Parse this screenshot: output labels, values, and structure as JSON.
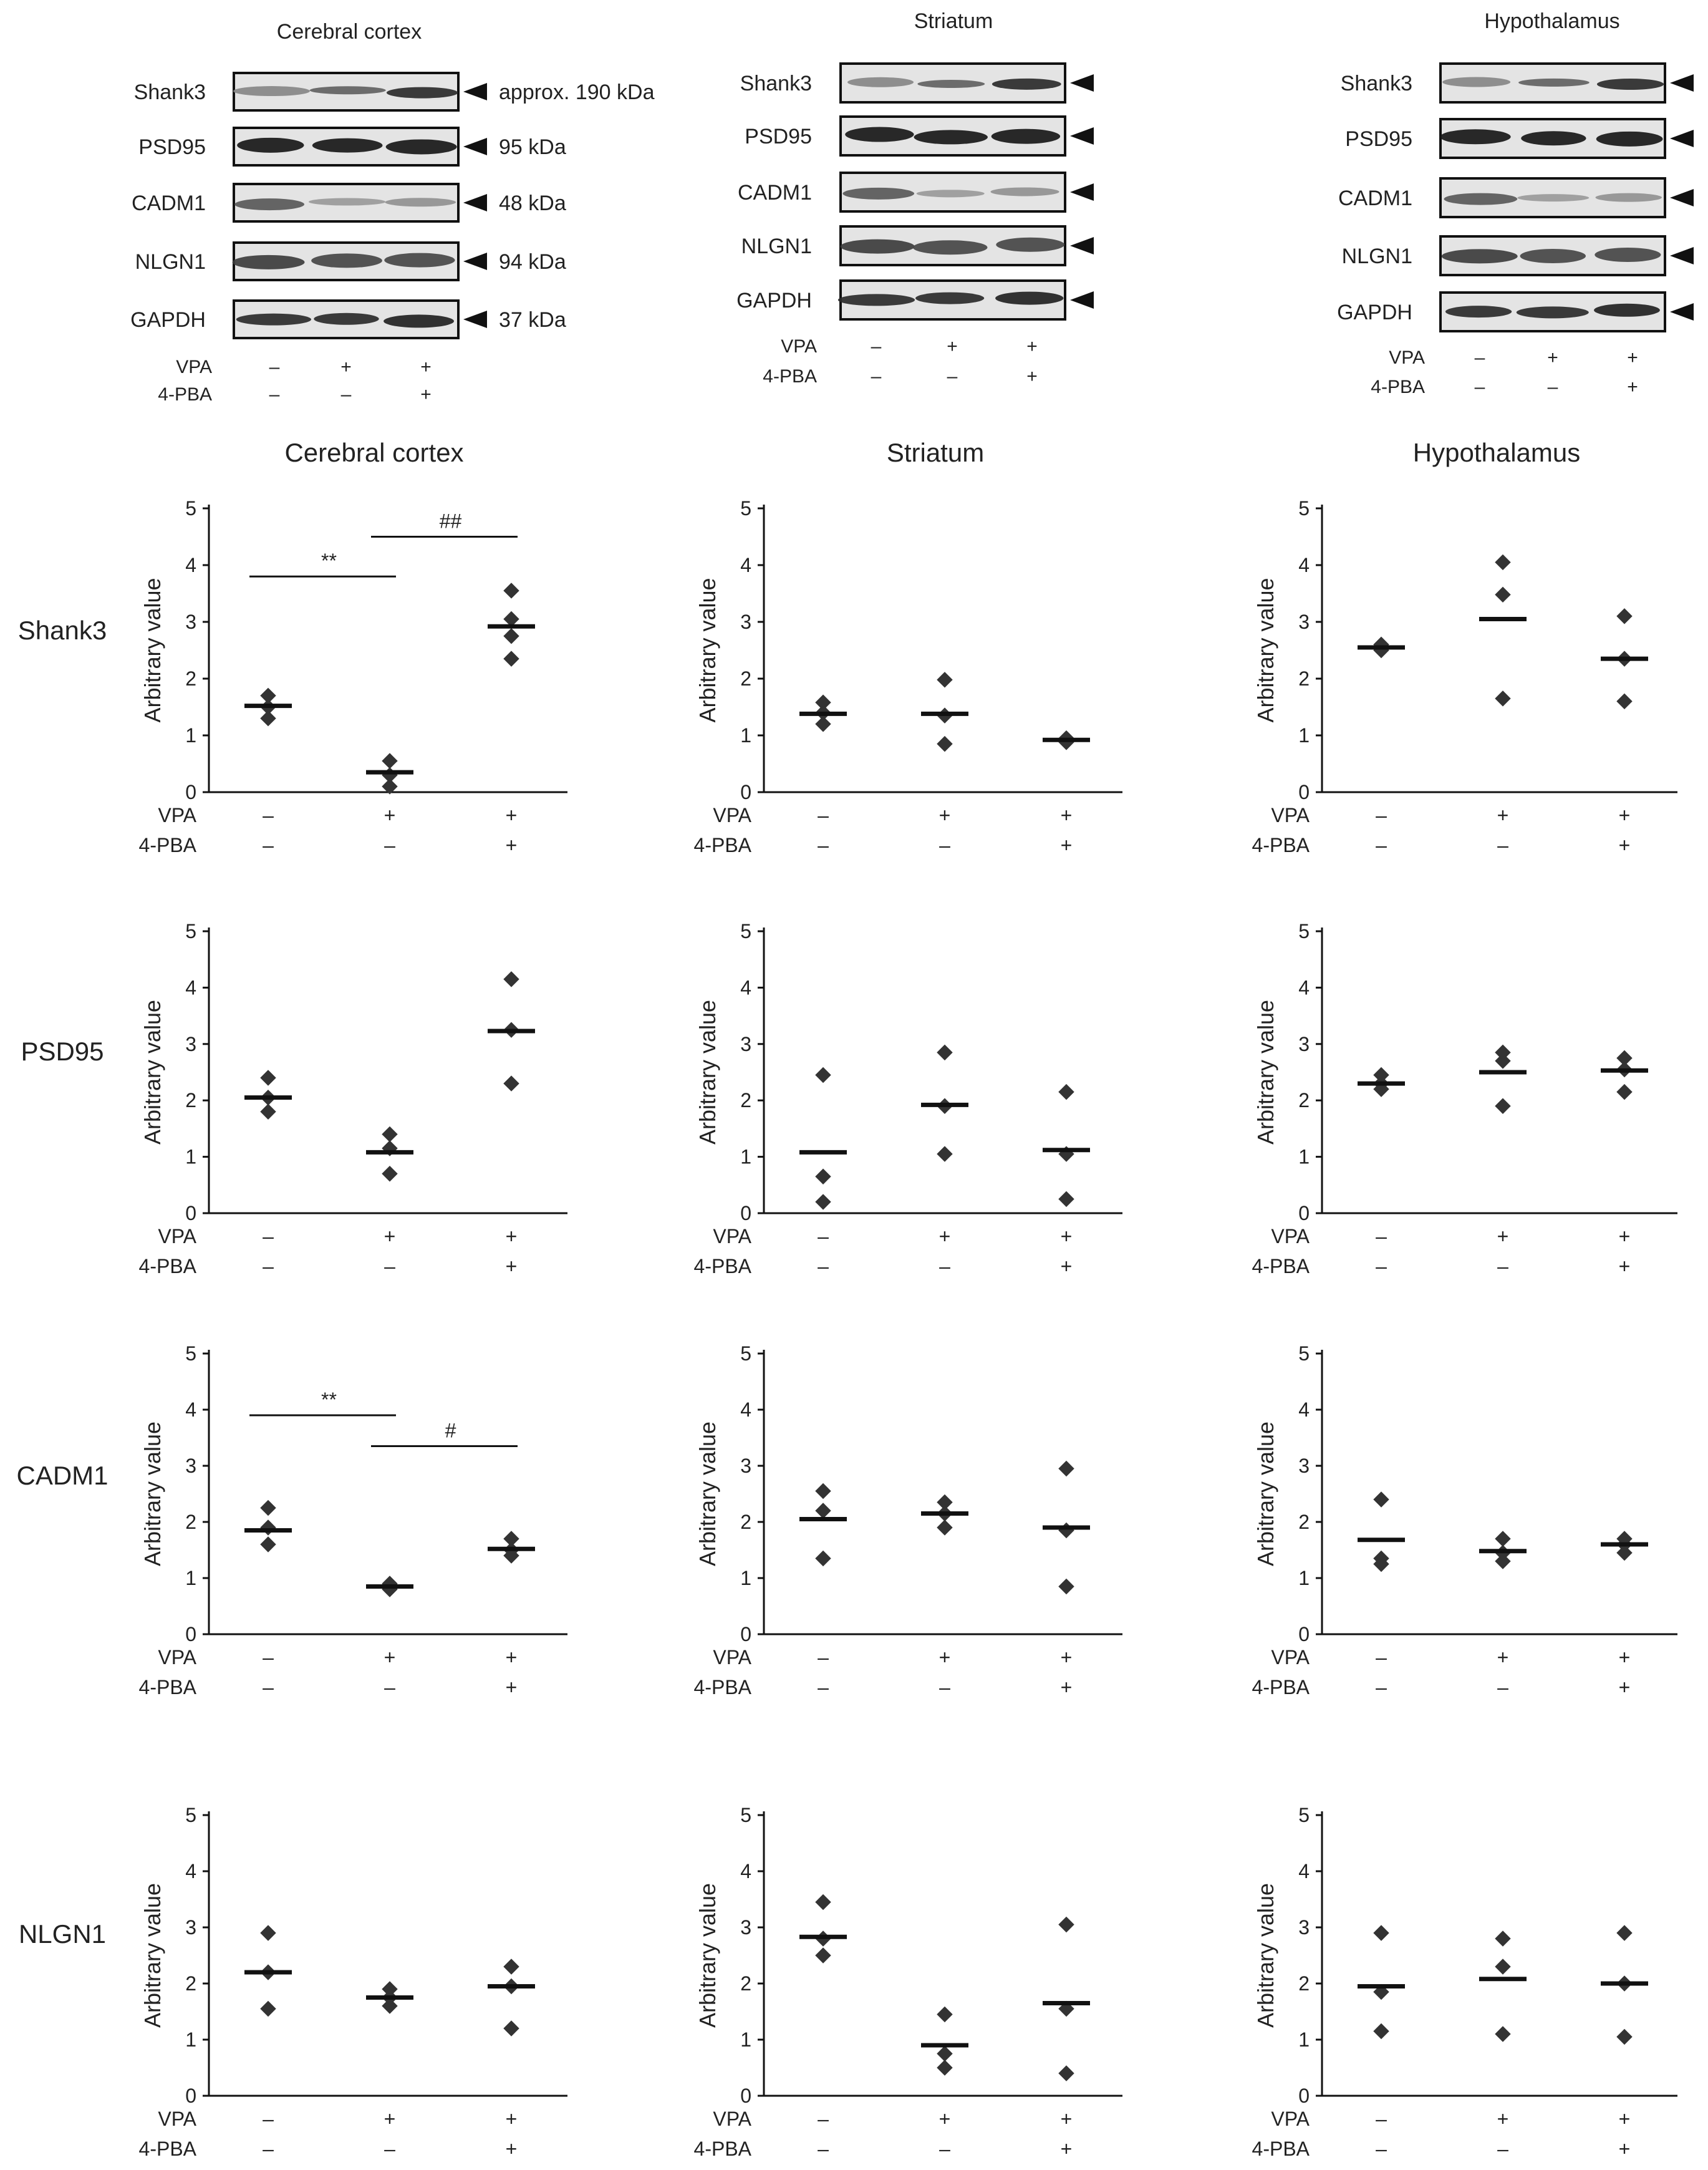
{
  "figure": {
    "blots": [
      {
        "title": "Cerebral cortex",
        "proteins": [
          "Shank3",
          "PSD95",
          "CADM1",
          "NLGN1",
          "GAPDH"
        ],
        "sizes": [
          "approx. 190 kDa",
          "95 kDa",
          "48 kDa",
          "94 kDa",
          "37 kDa"
        ],
        "vpa": [
          "–",
          "+",
          "+"
        ],
        "pba": [
          "–",
          "–",
          "+"
        ]
      },
      {
        "title": "Striatum",
        "proteins": [
          "Shank3",
          "PSD95",
          "CADM1",
          "NLGN1",
          "GAPDH"
        ],
        "sizes": [],
        "vpa": [
          "–",
          "+",
          "+"
        ],
        "pba": [
          "–",
          "–",
          "+"
        ]
      },
      {
        "title": "Hypothalamus",
        "proteins": [
          "Shank3",
          "PSD95",
          "CADM1",
          "NLGN1",
          "GAPDH"
        ],
        "sizes": [],
        "vpa": [
          "–",
          "+",
          "+"
        ],
        "pba": [
          "–",
          "–",
          "+"
        ]
      }
    ],
    "row_labels": [
      "Shank3",
      "PSD95",
      "CADM1",
      "NLGN1"
    ],
    "column_titles": [
      "Cerebral cortex",
      "Striatum",
      "Hypothalamus"
    ],
    "vpa_label": "VPA",
    "pba_label": "4-PBA"
  },
  "chart_data": [
    {
      "type": "scatter",
      "region": "Cerebral cortex",
      "protein": "Shank3",
      "ylabel": "Arbitrary value",
      "ylim": [
        0,
        5
      ],
      "yticks": [
        "0",
        "1",
        "2",
        "3",
        "4",
        "5"
      ],
      "xlabel_rows": [
        {
          "label": "VPA",
          "values": [
            "–",
            "+",
            "+"
          ]
        },
        {
          "label": "4-PBA",
          "values": [
            "–",
            "–",
            "+"
          ]
        }
      ],
      "groups": [
        {
          "points": [
            1.3,
            1.5,
            1.7
          ],
          "mean": 1.52
        },
        {
          "points": [
            0.1,
            0.3,
            0.55
          ],
          "mean": 0.35
        },
        {
          "points": [
            2.35,
            2.75,
            3.05,
            3.55
          ],
          "mean": 2.92
        }
      ],
      "annotations": [
        {
          "from": 0,
          "to": 1,
          "level": 3.8,
          "text": "**"
        },
        {
          "from": 1,
          "to": 2,
          "level": 4.5,
          "text": "##"
        }
      ]
    },
    {
      "type": "scatter",
      "region": "Striatum",
      "protein": "Shank3",
      "ylabel": "Arbitrary value",
      "ylim": [
        0,
        5
      ],
      "yticks": [
        "0",
        "1",
        "2",
        "3",
        "4",
        "5"
      ],
      "xlabel_rows": [
        {
          "label": "VPA",
          "values": [
            "–",
            "+",
            "+"
          ]
        },
        {
          "label": "4-PBA",
          "values": [
            "–",
            "–",
            "+"
          ]
        }
      ],
      "groups": [
        {
          "points": [
            1.2,
            1.4,
            1.58
          ],
          "mean": 1.38
        },
        {
          "points": [
            0.85,
            1.35,
            1.98
          ],
          "mean": 1.38
        },
        {
          "points": [
            0.88,
            0.92,
            0.95
          ],
          "mean": 0.92
        }
      ],
      "annotations": []
    },
    {
      "type": "scatter",
      "region": "Hypothalamus",
      "protein": "Shank3",
      "ylabel": "Arbitrary value",
      "ylim": [
        0,
        5
      ],
      "yticks": [
        "0",
        "1",
        "2",
        "3",
        "4",
        "5"
      ],
      "xlabel_rows": [
        {
          "label": "VPA",
          "values": [
            "–",
            "+",
            "+"
          ]
        },
        {
          "label": "4-PBA",
          "values": [
            "–",
            "–",
            "+"
          ]
        }
      ],
      "groups": [
        {
          "points": [
            2.5,
            2.55,
            2.6
          ],
          "mean": 2.55
        },
        {
          "points": [
            1.65,
            3.48,
            4.05
          ],
          "mean": 3.05
        },
        {
          "points": [
            1.6,
            2.35,
            3.1
          ],
          "mean": 2.35
        }
      ],
      "annotations": []
    },
    {
      "type": "scatter",
      "region": "Cerebral cortex",
      "protein": "PSD95",
      "ylabel": "Arbitrary value",
      "ylim": [
        0,
        5
      ],
      "yticks": [
        "0",
        "1",
        "2",
        "3",
        "4",
        "5"
      ],
      "xlabel_rows": [
        {
          "label": "VPA",
          "values": [
            "–",
            "+",
            "+"
          ]
        },
        {
          "label": "4-PBA",
          "values": [
            "–",
            "–",
            "+"
          ]
        }
      ],
      "groups": [
        {
          "points": [
            1.8,
            2.05,
            2.4
          ],
          "mean": 2.05
        },
        {
          "points": [
            0.7,
            1.15,
            1.4
          ],
          "mean": 1.08
        },
        {
          "points": [
            2.3,
            3.25,
            4.15
          ],
          "mean": 3.23
        }
      ],
      "annotations": []
    },
    {
      "type": "scatter",
      "region": "Striatum",
      "protein": "PSD95",
      "ylabel": "Arbitrary value",
      "ylim": [
        0,
        5
      ],
      "yticks": [
        "0",
        "1",
        "2",
        "3",
        "4",
        "5"
      ],
      "xlabel_rows": [
        {
          "label": "VPA",
          "values": [
            "–",
            "+",
            "+"
          ]
        },
        {
          "label": "4-PBA",
          "values": [
            "–",
            "–",
            "+"
          ]
        }
      ],
      "groups": [
        {
          "points": [
            0.2,
            0.65,
            2.45
          ],
          "mean": 1.08
        },
        {
          "points": [
            1.05,
            1.9,
            2.85
          ],
          "mean": 1.92
        },
        {
          "points": [
            0.25,
            1.05,
            2.15
          ],
          "mean": 1.12
        }
      ],
      "annotations": []
    },
    {
      "type": "scatter",
      "region": "Hypothalamus",
      "protein": "PSD95",
      "ylabel": "Arbitrary value",
      "ylim": [
        0,
        5
      ],
      "yticks": [
        "0",
        "1",
        "2",
        "3",
        "4",
        "5"
      ],
      "xlabel_rows": [
        {
          "label": "VPA",
          "values": [
            "–",
            "+",
            "+"
          ]
        },
        {
          "label": "4-PBA",
          "values": [
            "–",
            "–",
            "+"
          ]
        }
      ],
      "groups": [
        {
          "points": [
            2.2,
            2.3,
            2.45
          ],
          "mean": 2.3
        },
        {
          "points": [
            1.9,
            2.7,
            2.85
          ],
          "mean": 2.5
        },
        {
          "points": [
            2.15,
            2.55,
            2.75
          ],
          "mean": 2.53
        }
      ],
      "annotations": []
    },
    {
      "type": "scatter",
      "region": "Cerebral cortex",
      "protein": "CADM1",
      "ylabel": "Arbitrary value",
      "ylim": [
        0,
        5
      ],
      "yticks": [
        "0",
        "1",
        "2",
        "3",
        "4",
        "5"
      ],
      "xlabel_rows": [
        {
          "label": "VPA",
          "values": [
            "–",
            "+",
            "+"
          ]
        },
        {
          "label": "4-PBA",
          "values": [
            "–",
            "–",
            "+"
          ]
        }
      ],
      "groups": [
        {
          "points": [
            1.6,
            1.9,
            2.25
          ],
          "mean": 1.85
        },
        {
          "points": [
            0.8,
            0.85,
            0.9
          ],
          "mean": 0.85
        },
        {
          "points": [
            1.4,
            1.5,
            1.7
          ],
          "mean": 1.52
        }
      ],
      "annotations": [
        {
          "from": 0,
          "to": 1,
          "level": 3.9,
          "text": "**"
        },
        {
          "from": 1,
          "to": 2,
          "level": 3.35,
          "text": "#"
        }
      ]
    },
    {
      "type": "scatter",
      "region": "Striatum",
      "protein": "CADM1",
      "ylabel": "Arbitrary value",
      "ylim": [
        0,
        5
      ],
      "yticks": [
        "0",
        "1",
        "2",
        "3",
        "4",
        "5"
      ],
      "xlabel_rows": [
        {
          "label": "VPA",
          "values": [
            "–",
            "+",
            "+"
          ]
        },
        {
          "label": "4-PBA",
          "values": [
            "–",
            "–",
            "+"
          ]
        }
      ],
      "groups": [
        {
          "points": [
            1.35,
            2.2,
            2.55
          ],
          "mean": 2.05
        },
        {
          "points": [
            1.9,
            2.15,
            2.35
          ],
          "mean": 2.15
        },
        {
          "points": [
            0.85,
            1.85,
            2.95
          ],
          "mean": 1.9
        }
      ],
      "annotations": []
    },
    {
      "type": "scatter",
      "region": "Hypothalamus",
      "protein": "CADM1",
      "ylabel": "Arbitrary value",
      "ylim": [
        0,
        5
      ],
      "yticks": [
        "0",
        "1",
        "2",
        "3",
        "4",
        "5"
      ],
      "xlabel_rows": [
        {
          "label": "VPA",
          "values": [
            "–",
            "+",
            "+"
          ]
        },
        {
          "label": "4-PBA",
          "values": [
            "–",
            "–",
            "+"
          ]
        }
      ],
      "groups": [
        {
          "points": [
            1.25,
            1.35,
            2.4
          ],
          "mean": 1.68
        },
        {
          "points": [
            1.3,
            1.45,
            1.7
          ],
          "mean": 1.48
        },
        {
          "points": [
            1.45,
            1.6,
            1.7
          ],
          "mean": 1.6
        }
      ],
      "annotations": []
    },
    {
      "type": "scatter",
      "region": "Cerebral cortex",
      "protein": "NLGN1",
      "ylabel": "Arbitrary value",
      "ylim": [
        0,
        5
      ],
      "yticks": [
        "0",
        "1",
        "2",
        "3",
        "4",
        "5"
      ],
      "xlabel_rows": [
        {
          "label": "VPA",
          "values": [
            "–",
            "+",
            "+"
          ]
        },
        {
          "label": "4-PBA",
          "values": [
            "–",
            "–",
            "+"
          ]
        }
      ],
      "groups": [
        {
          "points": [
            1.55,
            2.2,
            2.9
          ],
          "mean": 2.2
        },
        {
          "points": [
            1.6,
            1.75,
            1.9
          ],
          "mean": 1.75
        },
        {
          "points": [
            1.2,
            1.95,
            2.3
          ],
          "mean": 1.95
        }
      ],
      "annotations": []
    },
    {
      "type": "scatter",
      "region": "Striatum",
      "protein": "NLGN1",
      "ylabel": "Arbitrary value",
      "ylim": [
        0,
        5
      ],
      "yticks": [
        "0",
        "1",
        "2",
        "3",
        "4",
        "5"
      ],
      "xlabel_rows": [
        {
          "label": "VPA",
          "values": [
            "–",
            "+",
            "+"
          ]
        },
        {
          "label": "4-PBA",
          "values": [
            "–",
            "–",
            "+"
          ]
        }
      ],
      "groups": [
        {
          "points": [
            2.5,
            2.8,
            3.45
          ],
          "mean": 2.83
        },
        {
          "points": [
            0.5,
            0.75,
            1.45
          ],
          "mean": 0.9
        },
        {
          "points": [
            0.4,
            1.55,
            3.05
          ],
          "mean": 1.65
        }
      ],
      "annotations": []
    },
    {
      "type": "scatter",
      "region": "Hypothalamus",
      "protein": "NLGN1",
      "ylabel": "Arbitrary value",
      "ylim": [
        0,
        5
      ],
      "yticks": [
        "0",
        "1",
        "2",
        "3",
        "4",
        "5"
      ],
      "xlabel_rows": [
        {
          "label": "VPA",
          "values": [
            "–",
            "+",
            "+"
          ]
        },
        {
          "label": "4-PBA",
          "values": [
            "–",
            "–",
            "+"
          ]
        }
      ],
      "groups": [
        {
          "points": [
            1.15,
            1.85,
            2.9
          ],
          "mean": 1.95
        },
        {
          "points": [
            1.1,
            2.3,
            2.8
          ],
          "mean": 2.08
        },
        {
          "points": [
            1.05,
            2.0,
            2.9
          ],
          "mean": 2.0
        }
      ],
      "annotations": []
    }
  ]
}
